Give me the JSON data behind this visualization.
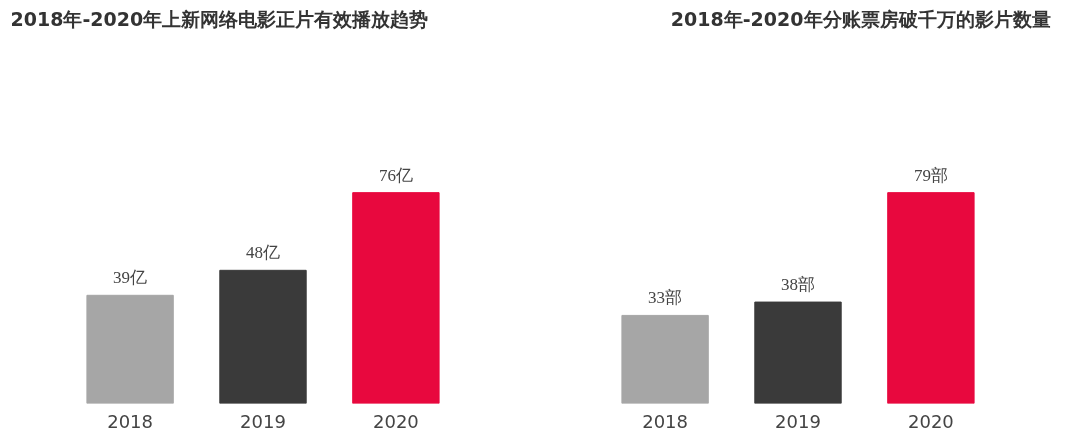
{
  "chart_data": [
    {
      "type": "bar",
      "title": "2018年-2020年上新网络电影正片有效播放趋势",
      "categories": [
        "2018",
        "2019",
        "2020"
      ],
      "values": [
        39,
        48,
        76
      ],
      "value_labels": [
        "39亿",
        "48亿",
        "76亿"
      ],
      "colors": [
        "#a6a6a6",
        "#3a3a3a",
        "#e8083e"
      ],
      "tick_labels": "x",
      "grid": false
    },
    {
      "type": "bar",
      "title": "2018年-2020年分账票房破千万的影片数量",
      "categories": [
        "2018",
        "2019",
        "2020"
      ],
      "values": [
        33,
        38,
        79
      ],
      "value_labels": [
        "33部",
        "38部",
        "79部"
      ],
      "colors": [
        "#a6a6a6",
        "#3a3a3a",
        "#e8083e"
      ],
      "tick_labels": "x",
      "grid": false
    }
  ]
}
